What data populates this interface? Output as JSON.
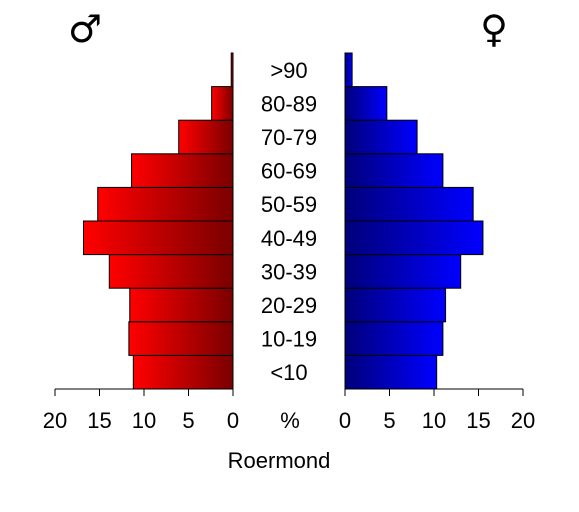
{
  "chart_data": {
    "type": "bar",
    "subtype": "population-pyramid",
    "title": "Roermond",
    "xlabel": "%",
    "categories": [
      "<10",
      "10-19",
      "20-29",
      "30-39",
      "40-49",
      "50-59",
      "60-69",
      "70-79",
      "80-89",
      ">90"
    ],
    "series": [
      {
        "name": "♂",
        "side": "left",
        "color": "#ff0000",
        "values": [
          11.2,
          11.7,
          11.6,
          13.9,
          16.8,
          15.2,
          11.4,
          6.1,
          2.4,
          0.2
        ]
      },
      {
        "name": "♀",
        "side": "right",
        "color": "#0000ff",
        "values": [
          10.3,
          11.0,
          11.3,
          13.0,
          15.5,
          14.4,
          11.0,
          8.1,
          4.7,
          0.8
        ]
      }
    ],
    "ticks": [
      "20",
      "15",
      "10",
      "5",
      "0"
    ],
    "xlim": [
      0,
      20
    ],
    "grid": false
  }
}
